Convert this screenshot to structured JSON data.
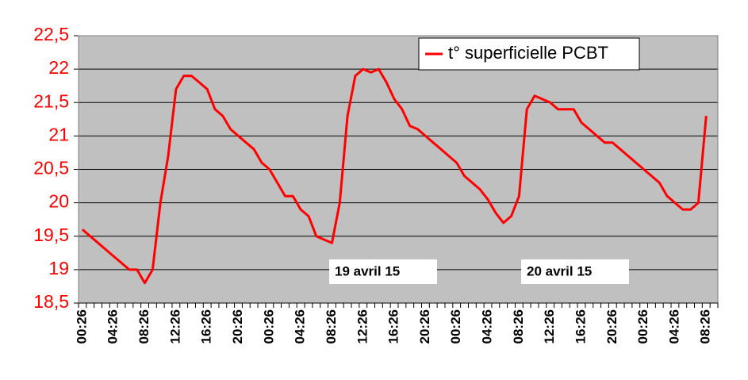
{
  "chart_data": {
    "type": "line",
    "categories": [
      "00:26",
      null,
      null,
      null,
      "04:26",
      null,
      null,
      null,
      "08:26",
      null,
      null,
      null,
      "12:26",
      null,
      null,
      null,
      "16:26",
      null,
      null,
      null,
      "20:26",
      null,
      null,
      null,
      "00:26",
      null,
      null,
      null,
      "04:26",
      null,
      null,
      null,
      "08:26",
      null,
      null,
      null,
      "12:26",
      null,
      null,
      null,
      "16:26",
      null,
      null,
      null,
      "20:26",
      null,
      null,
      null,
      "00:26",
      null,
      null,
      null,
      "04:26",
      null,
      null,
      null,
      "08:26",
      null,
      null,
      null,
      "12:26",
      null,
      null,
      null,
      "16:26",
      null,
      null,
      null,
      "20:26",
      null,
      null,
      null,
      "00:26",
      null,
      null,
      null,
      "04:26",
      null,
      null,
      null,
      "08:26",
      null
    ],
    "series": [
      {
        "name": "t° superficielle PCBT",
        "color": "#ff0000",
        "values": [
          19.6,
          19.5,
          19.4,
          19.3,
          19.2,
          19.1,
          19.0,
          19.0,
          18.8,
          19.0,
          20.0,
          20.7,
          21.7,
          21.9,
          21.9,
          21.8,
          21.7,
          21.4,
          21.3,
          21.1,
          21.0,
          20.9,
          20.8,
          20.6,
          20.5,
          20.3,
          20.1,
          20.1,
          19.9,
          19.8,
          19.5,
          19.45,
          19.4,
          20.0,
          21.3,
          21.9,
          22.0,
          21.95,
          22.0,
          21.8,
          21.55,
          21.4,
          21.15,
          21.1,
          21.0,
          20.9,
          20.8,
          20.7,
          20.6,
          20.4,
          20.3,
          20.2,
          20.05,
          19.85,
          19.7,
          19.8,
          20.1,
          21.4,
          21.6,
          21.55,
          21.5,
          21.4,
          21.4,
          21.4,
          21.2,
          21.1,
          21.0,
          20.9,
          20.9,
          20.8,
          20.7,
          20.6,
          20.5,
          20.4,
          20.3,
          20.1,
          20.0,
          19.9,
          19.9,
          20.0,
          21.3,
          null
        ]
      }
    ],
    "ylim": [
      18.5,
      22.5
    ],
    "yticks": [
      {
        "value": 18.5,
        "label": "18,5"
      },
      19,
      {
        "value": 19.5,
        "label": "19,5"
      },
      20,
      {
        "value": 20.5,
        "label": "20,5"
      },
      21,
      {
        "value": 21.5,
        "label": "21,5"
      },
      22,
      {
        "value": 22.5,
        "label": "22,5"
      }
    ],
    "grid": true,
    "legend": "top-right",
    "annotations": [
      "19 avril 15",
      "20 avril 15"
    ]
  }
}
